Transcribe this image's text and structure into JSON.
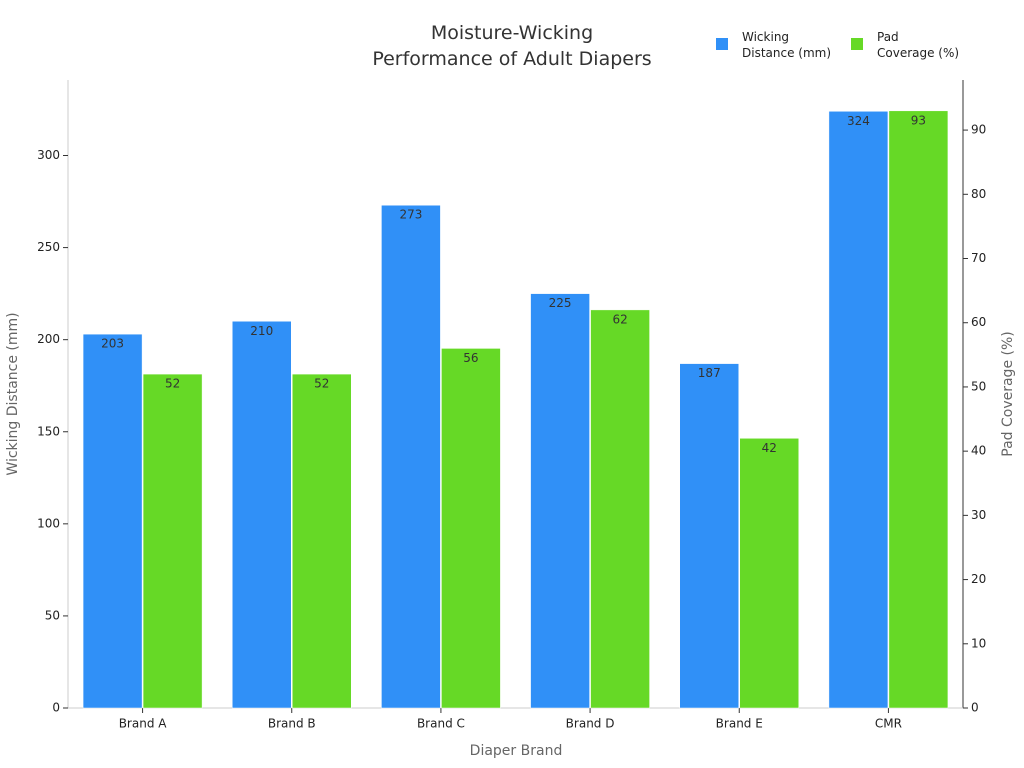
{
  "chart_data": {
    "type": "bar",
    "title": "Moisture-Wicking Performance of Adult Diapers",
    "x_label": "Diaper Brand",
    "y_label": "Wicking Distance (mm)",
    "y2_label": "Pad Coverage (%)",
    "categories": [
      "Brand A",
      "Brand B",
      "Brand C",
      "Brand D",
      "Brand E",
      "CMR"
    ],
    "series": [
      {
        "name": "Wicking Distance (mm)",
        "color": "#3090f7",
        "values": [
          203,
          210,
          273,
          225,
          187,
          324
        ]
      },
      {
        "name": "Pad Coverage (%)",
        "color": "#66d926",
        "axis": "y2",
        "values": [
          52,
          52,
          56,
          62,
          42,
          93
        ]
      }
    ],
    "ylim": [
      0,
      341
    ],
    "yticks": [
      0,
      50,
      100,
      150,
      200,
      250,
      300
    ],
    "y2lim": [
      0,
      97.8
    ],
    "y2ticks": [
      0,
      10,
      20,
      30,
      40,
      50,
      60,
      70,
      80,
      90
    ],
    "legend": "top-right"
  }
}
